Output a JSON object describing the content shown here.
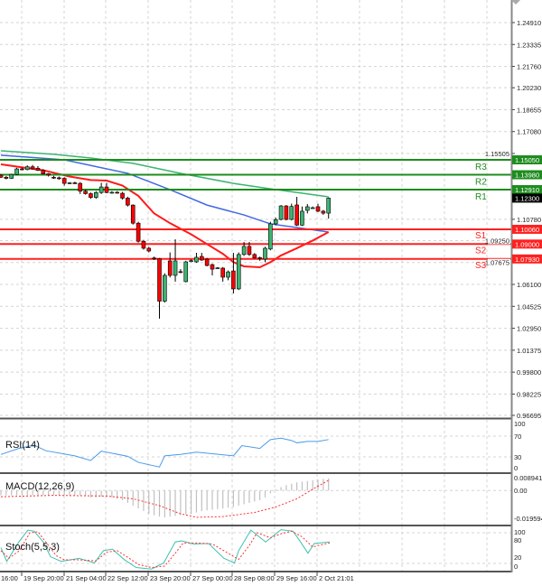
{
  "chart_data": {
    "type": "candlestick",
    "current_price": "1.12300",
    "price_axis": {
      "range": [
        0.96695,
        1.2491
      ],
      "ticks": [
        "1.24910",
        "1.23335",
        "1.21760",
        "1.20230",
        "1.18655",
        "1.17080",
        "1.15505",
        "1.10780",
        "1.09250",
        "1.07675",
        "1.06100",
        "1.04525",
        "1.02950",
        "1.01375",
        "0.99800",
        "0.98225",
        "0.96695"
      ]
    },
    "time_axis": {
      "labels": [
        "16:00",
        "19 Sep 20:00",
        "21 Sep 04:00",
        "22 Sep 12:00",
        "23 Sep 20:00",
        "27 Sep 00:00",
        "28 Sep 08:00",
        "29 Sep 16:00",
        "2 Oct 21:01"
      ]
    },
    "candles": [
      [
        1.1395,
        1.1402,
        1.1375,
        1.138
      ],
      [
        1.138,
        1.1388,
        1.1365,
        1.1372
      ],
      [
        1.1372,
        1.1405,
        1.1368,
        1.14
      ],
      [
        1.14,
        1.1448,
        1.1395,
        1.144
      ],
      [
        1.144,
        1.145,
        1.143,
        1.1438
      ],
      [
        1.1435,
        1.1465,
        1.143,
        1.1455
      ],
      [
        1.1455,
        1.1468,
        1.1435,
        1.144
      ],
      [
        1.1445,
        1.146,
        1.1425,
        1.143
      ],
      [
        1.143,
        1.1438,
        1.14,
        1.1405
      ],
      [
        1.1405,
        1.141,
        1.1385,
        1.1395
      ],
      [
        1.138,
        1.139,
        1.1368,
        1.1376
      ],
      [
        1.1376,
        1.1385,
        1.1362,
        1.1372
      ],
      [
        1.1372,
        1.138,
        1.132,
        1.1336
      ],
      [
        1.1336,
        1.1345,
        1.133,
        1.134
      ],
      [
        1.134,
        1.1348,
        1.1332,
        1.1336
      ],
      [
        1.1336,
        1.1345,
        1.126,
        1.128
      ],
      [
        1.128,
        1.129,
        1.1255,
        1.1262
      ],
      [
        1.1262,
        1.127,
        1.1225,
        1.1235
      ],
      [
        1.1235,
        1.128,
        1.1225,
        1.127
      ],
      [
        1.127,
        1.134,
        1.126,
        1.131
      ],
      [
        1.131,
        1.134,
        1.1265,
        1.127
      ],
      [
        1.127,
        1.128,
        1.1262,
        1.1272
      ],
      [
        1.1272,
        1.128,
        1.1262,
        1.1268
      ],
      [
        1.1265,
        1.1275,
        1.122,
        1.123
      ],
      [
        1.123,
        1.124,
        1.117,
        1.118
      ],
      [
        1.118,
        1.1185,
        1.104,
        1.105
      ],
      [
        1.105,
        1.106,
        1.091,
        1.092
      ],
      [
        1.092,
        1.093,
        1.086,
        1.087
      ],
      [
        1.087,
        1.088,
        1.084,
        1.085
      ],
      [
        1.08,
        1.081,
        1.0785,
        1.0795
      ],
      [
        1.0795,
        1.08,
        1.0364,
        1.049
      ],
      [
        1.049,
        1.069,
        1.048,
        1.0675
      ],
      [
        1.0779,
        1.084,
        1.066,
        1.0675
      ],
      [
        1.0675,
        1.0934,
        1.063,
        1.0779
      ],
      [
        1.0702,
        1.072,
        1.069,
        1.07
      ],
      [
        1.063,
        1.078,
        1.0625,
        1.0772
      ],
      [
        1.0779,
        1.079,
        1.077,
        1.0781
      ],
      [
        1.0772,
        1.0837,
        1.0765,
        1.0805
      ],
      [
        1.0811,
        1.0837,
        1.078,
        1.0785
      ],
      [
        1.0791,
        1.08,
        1.074,
        1.0746
      ],
      [
        1.0752,
        1.076,
        1.0675,
        1.072
      ],
      [
        1.0727,
        1.0735,
        1.072,
        1.0729
      ],
      [
        1.0727,
        1.0735,
        1.063,
        1.0662
      ],
      [
        1.0662,
        1.071,
        1.064,
        1.07
      ],
      [
        1.0707,
        1.0837,
        1.0545,
        1.0578
      ],
      [
        1.0578,
        1.084,
        1.057,
        1.0825
      ],
      [
        1.0825,
        1.0915,
        1.0815,
        1.0883
      ],
      [
        1.0883,
        1.0915,
        1.0815,
        1.0825
      ],
      [
        1.0825,
        1.0835,
        1.0795,
        1.08
      ],
      [
        1.0802,
        1.081,
        1.078,
        1.08
      ],
      [
        1.0792,
        1.088,
        1.077,
        1.087
      ],
      [
        1.0864,
        1.106,
        1.0855,
        1.1045
      ],
      [
        1.1045,
        1.109,
        1.1035,
        1.1075
      ],
      [
        1.1077,
        1.118,
        1.107,
        1.1174
      ],
      [
        1.1174,
        1.118,
        1.107,
        1.1077
      ],
      [
        1.1077,
        1.119,
        1.107,
        1.117
      ],
      [
        1.1181,
        1.1239,
        1.103,
        1.1036
      ],
      [
        1.1036,
        1.117,
        1.103,
        1.1136
      ],
      [
        1.1142,
        1.1187,
        1.112,
        1.1168
      ],
      [
        1.116,
        1.117,
        1.1155,
        1.1161
      ],
      [
        1.1168,
        1.119,
        1.113,
        1.1136
      ],
      [
        1.1136,
        1.1145,
        1.111,
        1.1122
      ],
      [
        1.1122,
        1.1235,
        1.1083,
        1.123
      ]
    ],
    "moving_averages": [
      {
        "color": "#3cb371",
        "points": [
          [
            0,
            1.157
          ],
          [
            10,
            1.1545
          ],
          [
            17,
            1.1518
          ],
          [
            25,
            1.148
          ],
          [
            34,
            1.1408
          ],
          [
            44,
            1.1336
          ],
          [
            51,
            1.1297
          ],
          [
            62,
            1.1239
          ]
        ]
      },
      {
        "color": "#4169e1",
        "points": [
          [
            0,
            1.1538
          ],
          [
            12,
            1.1505
          ],
          [
            24,
            1.1408
          ],
          [
            32,
            1.1291
          ],
          [
            39,
            1.118
          ],
          [
            46,
            1.1109
          ],
          [
            51,
            1.1045
          ],
          [
            56,
            1.1019
          ],
          [
            62,
            1.0986
          ]
        ]
      },
      {
        "color": "#ff1a1a",
        "points": [
          [
            0,
            1.1473
          ],
          [
            8,
            1.143
          ],
          [
            13,
            1.1385
          ],
          [
            17,
            1.136
          ],
          [
            20,
            1.1356
          ],
          [
            23,
            1.132
          ],
          [
            26,
            1.1246
          ],
          [
            29,
            1.112
          ],
          [
            32,
            1.105
          ],
          [
            36,
            1.097
          ],
          [
            39,
            1.09
          ],
          [
            42,
            1.083
          ],
          [
            44,
            1.077
          ],
          [
            46,
            1.074
          ],
          [
            49,
            1.0733
          ],
          [
            51,
            1.077
          ],
          [
            53,
            1.0818
          ],
          [
            56,
            1.087
          ],
          [
            59,
            1.0925
          ],
          [
            62,
            1.0986
          ]
        ]
      }
    ],
    "levels": [
      {
        "name": "R3",
        "value": "1.15050",
        "color": "#1e8c1e"
      },
      {
        "name": "R2",
        "value": "1.13980",
        "color": "#1e8c1e"
      },
      {
        "name": "R1",
        "value": "1.12910",
        "color": "#1e8c1e"
      },
      {
        "name": "S1",
        "value": "1.10060",
        "color": "#ff2020"
      },
      {
        "name": "S2",
        "value": "1.09000",
        "color": "#ff2020"
      },
      {
        "name": "S3",
        "value": "1.07930",
        "color": "#ff2020"
      }
    ],
    "indicators": {
      "rsi": {
        "label": "RSI(14)",
        "scale": [
          "100",
          "70",
          "30",
          "0"
        ],
        "color": "#4a9be8",
        "points": [
          [
            0,
            30
          ],
          [
            3.4,
            43
          ],
          [
            6.3,
            50
          ],
          [
            8.5,
            38
          ],
          [
            14,
            27
          ],
          [
            17,
            17
          ],
          [
            19,
            37
          ],
          [
            24,
            26
          ],
          [
            26,
            13
          ],
          [
            30,
            3
          ],
          [
            31,
            27
          ],
          [
            34,
            30
          ],
          [
            37,
            35
          ],
          [
            44,
            27
          ],
          [
            45.6,
            49
          ],
          [
            49,
            43
          ],
          [
            51,
            62
          ],
          [
            53,
            65
          ],
          [
            55,
            60
          ],
          [
            56,
            55
          ],
          [
            58,
            58
          ],
          [
            60,
            58
          ],
          [
            62,
            62
          ]
        ]
      },
      "macd": {
        "label": "MACD(12,26,9)",
        "scale": [
          "0.008941",
          "0.00",
          "-0.019594"
        ],
        "histogram": [
          -0.0035,
          -0.0035,
          -0.0035,
          -0.0035,
          -0.0035,
          -0.0035,
          -0.0035,
          -0.0035,
          -0.0035,
          -0.0035,
          -0.0035,
          -0.0035,
          -0.0035,
          -0.0035,
          -0.0035,
          -0.0035,
          -0.004,
          -0.005,
          -0.005,
          -0.0045,
          -0.0045,
          -0.005,
          -0.006,
          -0.007,
          -0.009,
          -0.011,
          -0.013,
          -0.015,
          -0.017,
          -0.018,
          -0.019,
          -0.0195,
          -0.019,
          -0.0185,
          -0.018,
          -0.0175,
          -0.017,
          -0.016,
          -0.015,
          -0.0145,
          -0.014,
          -0.0135,
          -0.013,
          -0.0125,
          -0.012,
          -0.011,
          -0.01,
          -0.009,
          -0.008,
          -0.007,
          -0.005,
          -0.002,
          0.001,
          0.0025,
          0.004,
          0.005,
          0.006,
          0.0065,
          0.007,
          0.0075,
          0.008,
          0.0085,
          0.0089
        ],
        "signal": [
          [
            0,
            -0.0045
          ],
          [
            10,
            -0.0035
          ],
          [
            20,
            -0.004
          ],
          [
            25,
            -0.006
          ],
          [
            30,
            -0.011
          ],
          [
            34,
            -0.017
          ],
          [
            37,
            -0.0195
          ],
          [
            42,
            -0.019
          ],
          [
            48,
            -0.016
          ],
          [
            52,
            -0.012
          ],
          [
            56,
            -0.006
          ],
          [
            59,
            0.001
          ],
          [
            62,
            0.0075
          ]
        ]
      },
      "stoch": {
        "label": "Stoch(5,5,3)",
        "scale": [
          "100",
          "80",
          "20",
          "0"
        ],
        "main_color": "#40c0b0",
        "signal_color": "#ff3030",
        "main": [
          [
            0,
            51
          ],
          [
            1.1,
            24
          ],
          [
            3.4,
            62
          ],
          [
            5.1,
            85
          ],
          [
            6.3,
            83
          ],
          [
            8,
            62
          ],
          [
            9.4,
            33
          ],
          [
            11.4,
            24
          ],
          [
            14.8,
            30
          ],
          [
            17.7,
            21
          ],
          [
            19.4,
            45
          ],
          [
            21.1,
            48
          ],
          [
            23.4,
            27
          ],
          [
            25.6,
            12
          ],
          [
            28.5,
            9
          ],
          [
            30.8,
            21
          ],
          [
            33,
            62
          ],
          [
            34.2,
            64
          ],
          [
            36.5,
            58
          ],
          [
            39.3,
            59
          ],
          [
            42.2,
            30
          ],
          [
            44.2,
            21
          ],
          [
            45,
            45
          ],
          [
            47.3,
            85
          ],
          [
            50.1,
            62
          ],
          [
            53,
            86
          ],
          [
            55.3,
            83
          ],
          [
            56.7,
            62
          ],
          [
            58.1,
            40
          ],
          [
            59.3,
            59
          ],
          [
            62.2,
            62
          ]
        ],
        "signal": [
          [
            0,
            45
          ],
          [
            1.5,
            30
          ],
          [
            3.5,
            45
          ],
          [
            5.5,
            80
          ],
          [
            7,
            82
          ],
          [
            9,
            55
          ],
          [
            10.5,
            35
          ],
          [
            12,
            27
          ],
          [
            15,
            27
          ],
          [
            18,
            25
          ],
          [
            20,
            42
          ],
          [
            22,
            45
          ],
          [
            24,
            32
          ],
          [
            26,
            18
          ],
          [
            28.5,
            12
          ],
          [
            31,
            15
          ],
          [
            33,
            40
          ],
          [
            34.5,
            60
          ],
          [
            37,
            60
          ],
          [
            40,
            58
          ],
          [
            43,
            40
          ],
          [
            45,
            28
          ],
          [
            47,
            55
          ],
          [
            48.5,
            80
          ],
          [
            51,
            70
          ],
          [
            53,
            78
          ],
          [
            55,
            83
          ],
          [
            57,
            72
          ],
          [
            59,
            52
          ],
          [
            60,
            55
          ],
          [
            62.2,
            60
          ]
        ]
      }
    }
  },
  "colors": {
    "bull": "#3cb371",
    "bear": "#ff0000",
    "current_price_box": "#000000",
    "support": "#ff2020",
    "resistance": "#1e8c1e",
    "macd_histogram": "#c0c0c0"
  }
}
